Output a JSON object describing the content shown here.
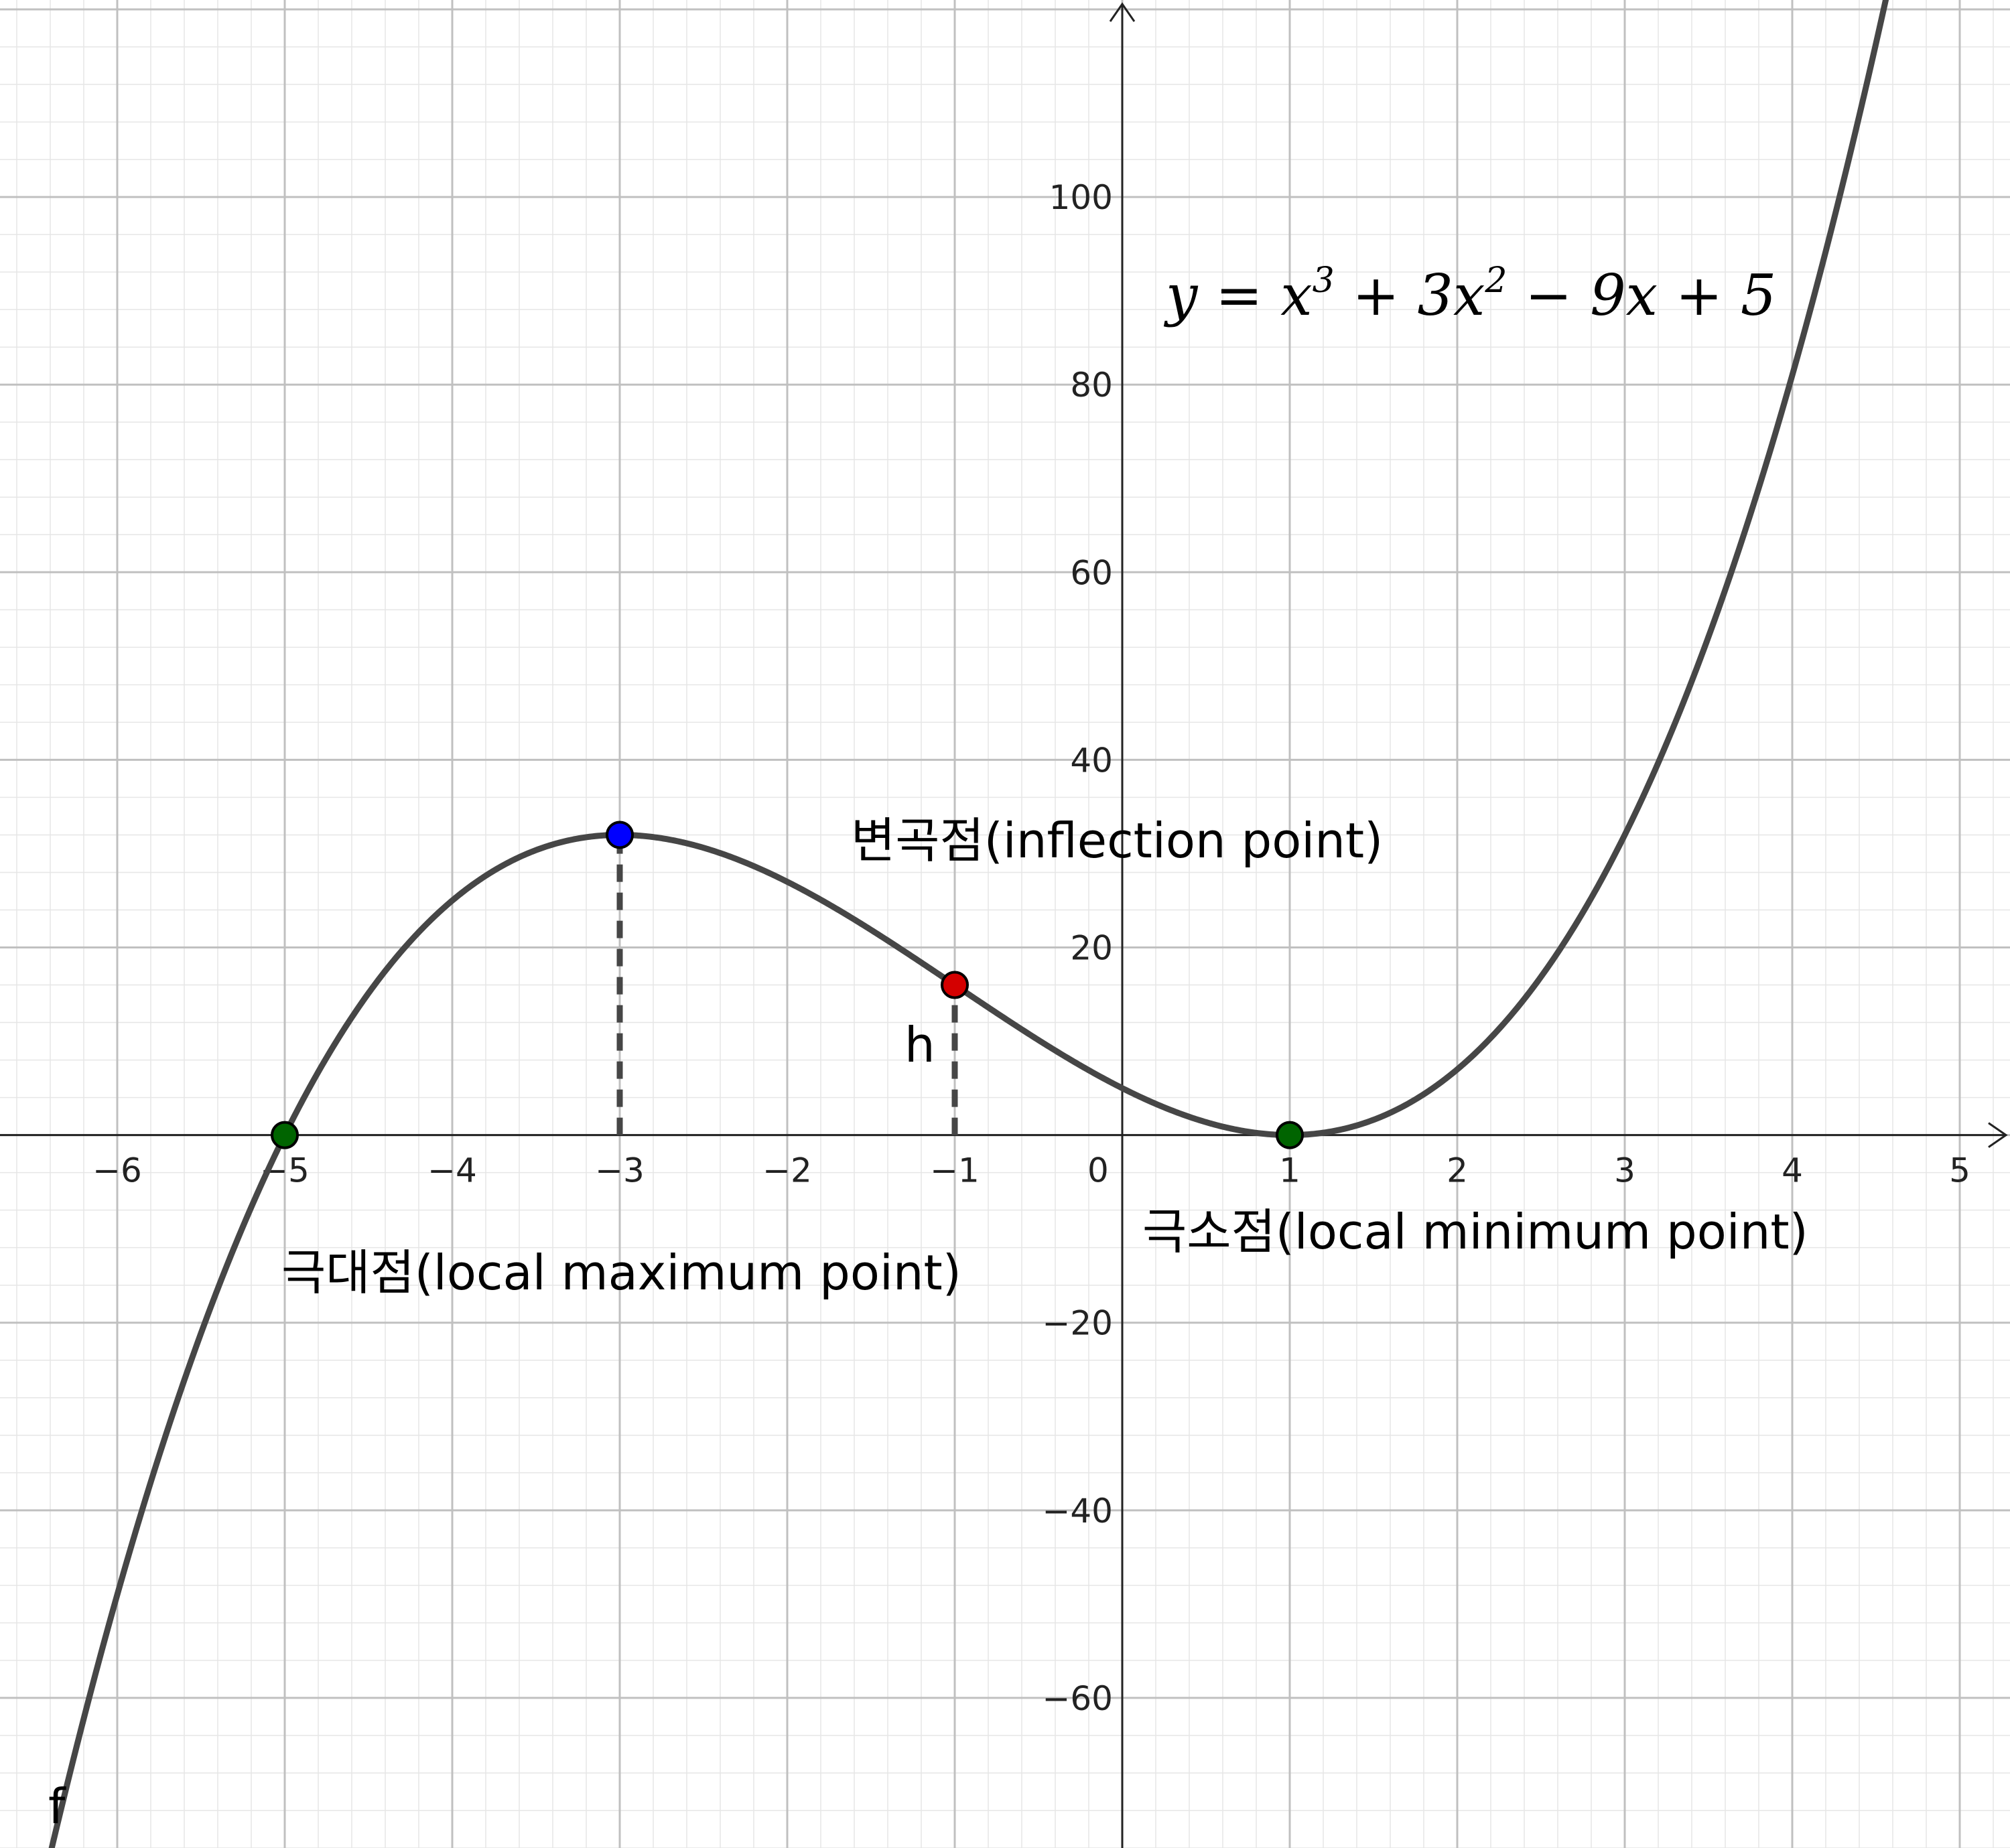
{
  "chart_data": {
    "type": "line",
    "function_label": "f",
    "equation": {
      "lhs": "y",
      "equals": " = ",
      "t1": "x",
      "t1_exp": "3",
      "t2": " + 3x",
      "t2_exp": "2",
      "t3": " − 9x + 5"
    },
    "xlim": [
      -6.7,
      5.3
    ],
    "ylim": [
      -76,
      121
    ],
    "x_ticks": [
      -6,
      -5,
      -4,
      -3,
      -2,
      -1,
      0,
      1,
      2,
      3,
      4,
      5
    ],
    "x_tick_labels": [
      "−6",
      "−5",
      "−4",
      "−3",
      "−2",
      "−1",
      "0",
      "1",
      "2",
      "3",
      "4",
      "5"
    ],
    "y_ticks": [
      -60,
      -40,
      -20,
      20,
      40,
      60,
      80,
      100
    ],
    "y_tick_labels": [
      "−60",
      "−40",
      "−20",
      "20",
      "40",
      "60",
      "80",
      "100"
    ],
    "grid": true,
    "minor_grid": true,
    "curve": {
      "coefficients": [
        1,
        3,
        -9,
        5
      ],
      "color": "#464646"
    },
    "points": [
      {
        "name": "local-maximum-point",
        "x": -3,
        "y": 32,
        "color": "#0000ff"
      },
      {
        "name": "inflection-point",
        "x": -1,
        "y": 16,
        "color": "#d40000"
      },
      {
        "name": "root-point",
        "x": -5,
        "y": 0,
        "color": "#006400"
      },
      {
        "name": "local-minimum-point",
        "x": 1,
        "y": 0,
        "color": "#006400"
      }
    ],
    "dashed_segments": [
      {
        "x": -3,
        "y_from": 0,
        "y_to": 32
      },
      {
        "x": -1,
        "y_from": 0,
        "y_to": 16
      }
    ],
    "annotations": {
      "inflection": "변곡점(inflection point)",
      "local_max": "극대점(local maximum point)",
      "local_min": "극소점(local minimum point)",
      "h": "h"
    }
  }
}
